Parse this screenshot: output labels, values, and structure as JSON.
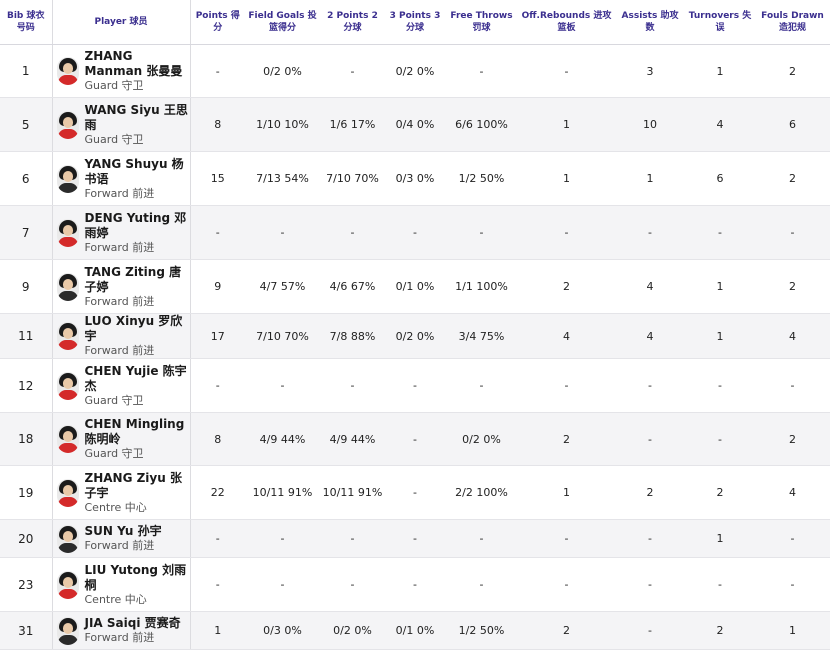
{
  "headers": {
    "bib": "Bib 球衣号码",
    "player": "Player 球员",
    "points": "Points 得分",
    "fg": "Field Goals 投篮得分",
    "p2": "2 Points 2分球",
    "p3": "3 Points 3分球",
    "ft": "Free Throws 罚球",
    "oreb": "Off.Rebounds 进攻篮板",
    "ast": "Assists 助攻数",
    "to": "Turnovers 失误",
    "fd": "Fouls Drawn 造犯规"
  },
  "players": [
    {
      "bib": "1",
      "name": "ZHANG Manman 张曼曼",
      "position": "Guard 守卫",
      "points": "-",
      "fg": "0/2 0%",
      "p2": "-",
      "p3": "0/2 0%",
      "ft": "-",
      "oreb": "-",
      "ast": "3",
      "to": "1",
      "fd": "2",
      "jersey": "red"
    },
    {
      "bib": "5",
      "name": "WANG Siyu 王思雨",
      "position": "Guard 守卫",
      "points": "8",
      "fg": "1/10 10%",
      "p2": "1/6 17%",
      "p3": "0/4 0%",
      "ft": "6/6 100%",
      "oreb": "1",
      "ast": "10",
      "to": "4",
      "fd": "6",
      "jersey": "red"
    },
    {
      "bib": "6",
      "name": "YANG Shuyu 杨书语",
      "position": "Forward 前进",
      "points": "15",
      "fg": "7/13 54%",
      "p2": "7/10 70%",
      "p3": "0/3 0%",
      "ft": "1/2 50%",
      "oreb": "1",
      "ast": "1",
      "to": "6",
      "fd": "2",
      "jersey": "dark"
    },
    {
      "bib": "7",
      "name": "DENG Yuting 邓雨婷",
      "position": "Forward 前进",
      "points": "-",
      "fg": "-",
      "p2": "-",
      "p3": "-",
      "ft": "-",
      "oreb": "-",
      "ast": "-",
      "to": "-",
      "fd": "-",
      "jersey": "red"
    },
    {
      "bib": "9",
      "name": "TANG Ziting 唐子婷",
      "position": "Forward 前进",
      "points": "9",
      "fg": "4/7 57%",
      "p2": "4/6 67%",
      "p3": "0/1 0%",
      "ft": "1/1 100%",
      "oreb": "2",
      "ast": "4",
      "to": "1",
      "fd": "2",
      "jersey": "dark"
    },
    {
      "bib": "11",
      "name": "LUO Xinyu 罗欣宇",
      "position": "Forward 前进",
      "points": "17",
      "fg": "7/10 70%",
      "p2": "7/8 88%",
      "p3": "0/2 0%",
      "ft": "3/4 75%",
      "oreb": "4",
      "ast": "4",
      "to": "1",
      "fd": "4",
      "jersey": "red"
    },
    {
      "bib": "12",
      "name": "CHEN Yujie 陈宇杰",
      "position": "Guard 守卫",
      "points": "-",
      "fg": "-",
      "p2": "-",
      "p3": "-",
      "ft": "-",
      "oreb": "-",
      "ast": "-",
      "to": "-",
      "fd": "-",
      "jersey": "red"
    },
    {
      "bib": "18",
      "name": "CHEN Mingling 陈明岭",
      "position": "Guard 守卫",
      "points": "8",
      "fg": "4/9 44%",
      "p2": "4/9 44%",
      "p3": "-",
      "ft": "0/2 0%",
      "oreb": "2",
      "ast": "-",
      "to": "-",
      "fd": "2",
      "jersey": "red"
    },
    {
      "bib": "19",
      "name": "ZHANG Ziyu 张子宇",
      "position": "Centre 中心",
      "points": "22",
      "fg": "10/11 91%",
      "p2": "10/11 91%",
      "p3": "-",
      "ft": "2/2 100%",
      "oreb": "1",
      "ast": "2",
      "to": "2",
      "fd": "4",
      "jersey": "red"
    },
    {
      "bib": "20",
      "name": "SUN Yu 孙宇",
      "position": "Forward 前进",
      "points": "-",
      "fg": "-",
      "p2": "-",
      "p3": "-",
      "ft": "-",
      "oreb": "-",
      "ast": "-",
      "to": "1",
      "fd": "-",
      "jersey": "dark"
    },
    {
      "bib": "23",
      "name": "LIU Yutong 刘雨桐",
      "position": "Centre 中心",
      "points": "-",
      "fg": "-",
      "p2": "-",
      "p3": "-",
      "ft": "-",
      "oreb": "-",
      "ast": "-",
      "to": "-",
      "fd": "-",
      "jersey": "red"
    },
    {
      "bib": "31",
      "name": "JIA Saiqi 贾赛奇",
      "position": "Forward 前进",
      "points": "1",
      "fg": "0/3 0%",
      "p2": "0/2 0%",
      "p3": "0/1 0%",
      "ft": "1/2 50%",
      "oreb": "2",
      "ast": "-",
      "to": "2",
      "fd": "1",
      "jersey": "dark"
    }
  ]
}
